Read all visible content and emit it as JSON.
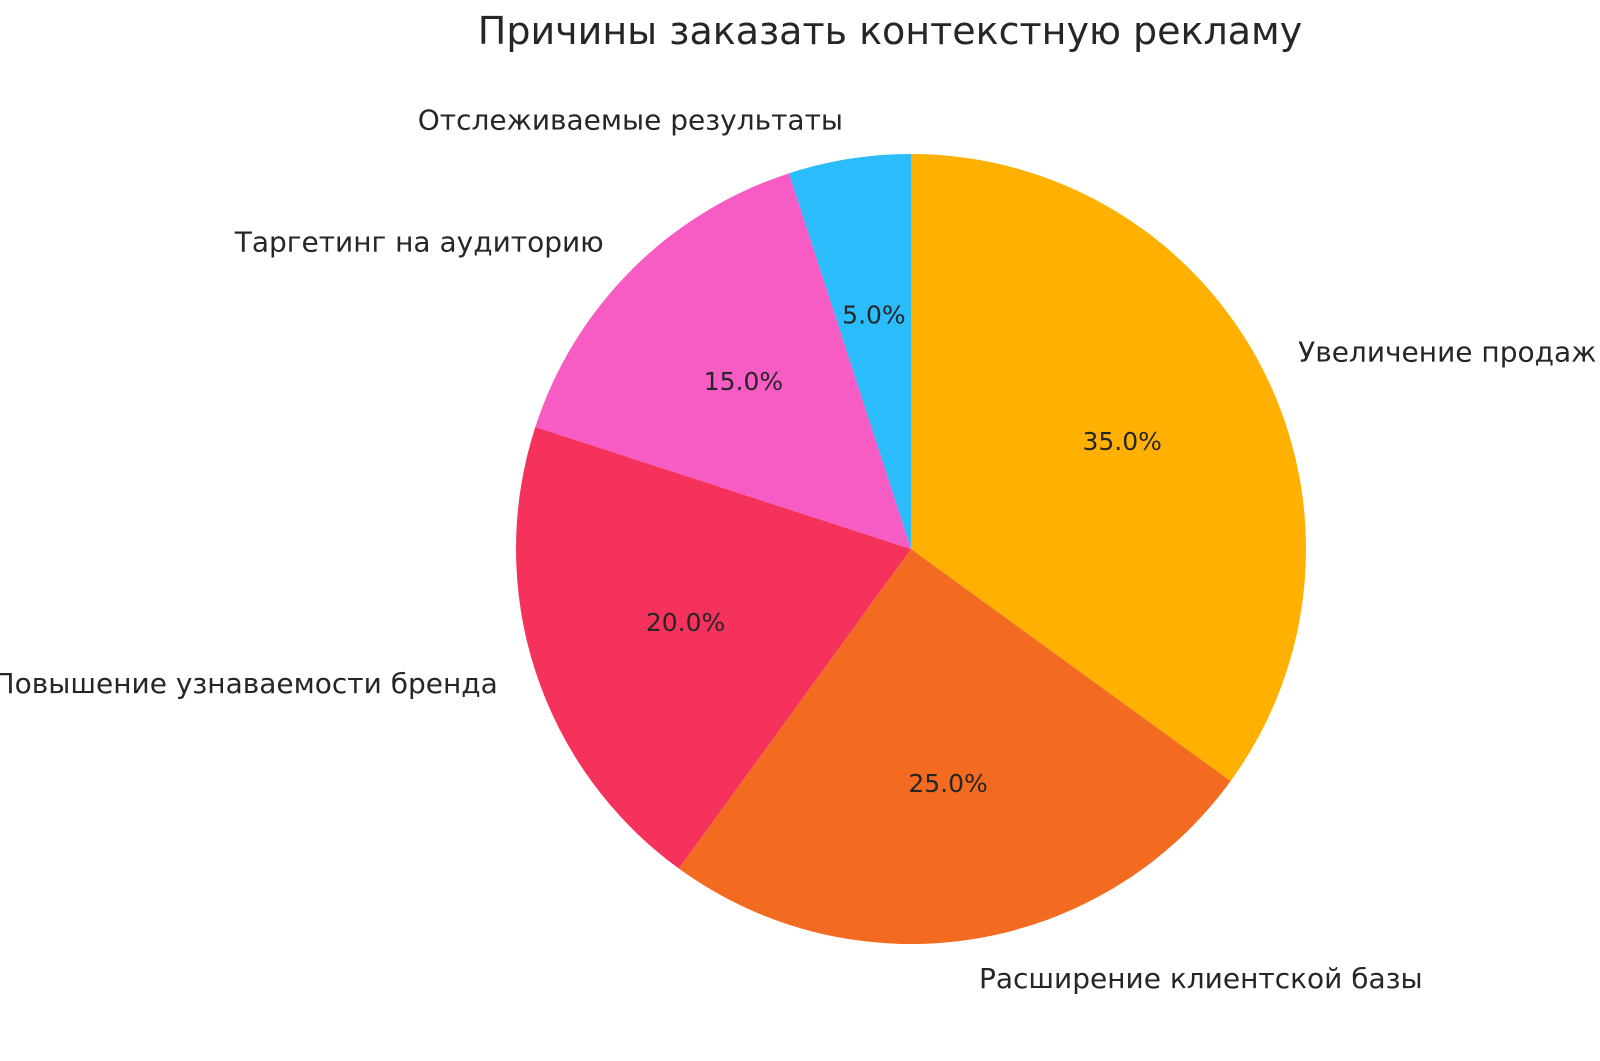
{
  "chart_data": {
    "type": "pie",
    "title": "Причины заказать контекстную рекламу",
    "slices": [
      {
        "label": "Увеличение продаж",
        "value": 35.0,
        "pct_label": "35.0%",
        "color": "#FFB000"
      },
      {
        "label": "Расширение клиентской базы",
        "value": 25.0,
        "pct_label": "25.0%",
        "color": "#F26B21"
      },
      {
        "label": "Повышение узнаваемости бренда",
        "value": 20.0,
        "pct_label": "20.0%",
        "color": "#F4325B"
      },
      {
        "label": "Таргетинг на аудиторию",
        "value": 15.0,
        "pct_label": "15.0%",
        "color": "#F75BC4"
      },
      {
        "label": "Отслеживаемые результаты",
        "value": 5.0,
        "pct_label": "5.0%",
        "color": "#2BBCFB"
      }
    ],
    "start_angle_deg": 90,
    "direction": "clockwise",
    "label_distance": 1.1,
    "pct_distance": 0.6,
    "text_color": "#262626",
    "background": "#FFFFFF",
    "legend": "none",
    "xlabel": "",
    "ylabel": ""
  }
}
